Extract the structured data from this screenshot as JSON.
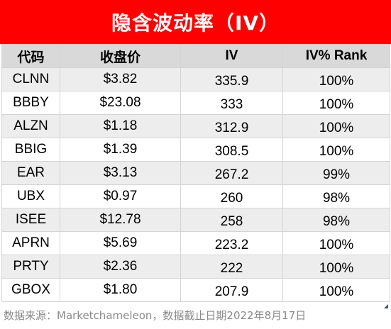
{
  "title": "隐含波动率（IV）",
  "headers": [
    "代码",
    "收盘价",
    "IV",
    "IV% Rank"
  ],
  "rows": [
    {
      "ticker": "CLNN",
      "price": "$3.82",
      "iv": "335.9",
      "rank": "100%"
    },
    {
      "ticker": "BBBY",
      "price": "$23.08",
      "iv": "333",
      "rank": "100%"
    },
    {
      "ticker": "ALZN",
      "price": "$1.18",
      "iv": "312.9",
      "rank": "100%"
    },
    {
      "ticker": "BBIG",
      "price": "$1.39",
      "iv": "308.5",
      "rank": "100%"
    },
    {
      "ticker": "EAR",
      "price": "$3.13",
      "iv": "267.2",
      "rank": "99%"
    },
    {
      "ticker": "UBX",
      "price": "$0.97",
      "iv": "260",
      "rank": "98%"
    },
    {
      "ticker": "ISEE",
      "price": "$12.78",
      "iv": "258",
      "rank": "98%"
    },
    {
      "ticker": "APRN",
      "price": "$5.69",
      "iv": "223.2",
      "rank": "100%"
    },
    {
      "ticker": "PRTY",
      "price": "$2.36",
      "iv": "222",
      "rank": "100%"
    },
    {
      "ticker": "GBOX",
      "price": "$1.80",
      "iv": "207.9",
      "rank": "100%"
    }
  ],
  "source": "数据来源：Marketchameleon，数据截止日期2022年8月17日",
  "colors": {
    "title_bg": "#ff0000",
    "header_bg": "#d9d9d9",
    "stripe_bg": "#ededed"
  }
}
